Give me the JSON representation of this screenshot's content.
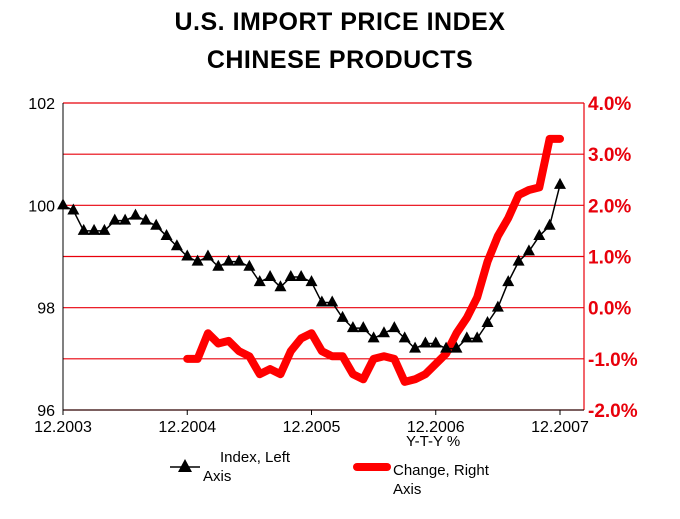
{
  "titles": {
    "line1": "U.S. IMPORT PRICE INDEX",
    "line2": "CHINESE PRODUCTS"
  },
  "colors": {
    "index_series": "#000000",
    "yty_series": "#ff0000",
    "gridline": "#e8000b",
    "right_axis_labels": "#e8000b"
  },
  "chart_data": {
    "type": "line",
    "title": "U.S. IMPORT PRICE INDEX CHINESE PRODUCTS",
    "x_tick_labels": [
      "12.2003",
      "12.2004",
      "12.2005",
      "12.2006",
      "12.2007"
    ],
    "left_axis": {
      "ylim": [
        96,
        102
      ],
      "ticks": [
        "96",
        "98",
        "100",
        "102"
      ]
    },
    "right_axis": {
      "ylim": [
        -2.0,
        4.0
      ],
      "ticks": [
        "-2.0%",
        "-1.0%",
        "0.0%",
        "1.0%",
        "2.0%",
        "3.0%",
        "4.0%"
      ]
    },
    "grid": "horizontal",
    "legend_position": "bottom",
    "series": [
      {
        "name": "Index, Left Axis",
        "axis": "left",
        "marker": "triangle",
        "x": [
          "2003-12",
          "2004-01",
          "2004-02",
          "2004-03",
          "2004-04",
          "2004-05",
          "2004-06",
          "2004-07",
          "2004-08",
          "2004-09",
          "2004-10",
          "2004-11",
          "2004-12",
          "2005-01",
          "2005-02",
          "2005-03",
          "2005-04",
          "2005-05",
          "2005-06",
          "2005-07",
          "2005-08",
          "2005-09",
          "2005-10",
          "2005-11",
          "2005-12",
          "2006-01",
          "2006-02",
          "2006-03",
          "2006-04",
          "2006-05",
          "2006-06",
          "2006-07",
          "2006-08",
          "2006-09",
          "2006-10",
          "2006-11",
          "2006-12",
          "2007-01",
          "2007-02",
          "2007-03",
          "2007-04",
          "2007-05",
          "2007-06",
          "2007-07",
          "2007-08",
          "2007-09",
          "2007-10",
          "2007-11",
          "2007-12"
        ],
        "values": [
          100.0,
          99.9,
          99.5,
          99.5,
          99.5,
          99.7,
          99.7,
          99.8,
          99.7,
          99.6,
          99.4,
          99.2,
          99.0,
          98.9,
          99.0,
          98.8,
          98.9,
          98.9,
          98.8,
          98.5,
          98.6,
          98.4,
          98.6,
          98.6,
          98.5,
          98.1,
          98.1,
          97.8,
          97.6,
          97.6,
          97.4,
          97.5,
          97.6,
          97.4,
          97.2,
          97.3,
          97.3,
          97.2,
          97.2,
          97.4,
          97.4,
          97.7,
          98.0,
          98.5,
          98.9,
          99.1,
          99.4,
          99.6,
          100.4
        ]
      },
      {
        "name": "Y-T-Y % Change, Right Axis",
        "axis": "right",
        "x": [
          "2004-12",
          "2005-01",
          "2005-02",
          "2005-03",
          "2005-04",
          "2005-05",
          "2005-06",
          "2005-07",
          "2005-08",
          "2005-09",
          "2005-10",
          "2005-11",
          "2005-12",
          "2006-01",
          "2006-02",
          "2006-03",
          "2006-04",
          "2006-05",
          "2006-06",
          "2006-07",
          "2006-08",
          "2006-09",
          "2006-10",
          "2006-11",
          "2006-12",
          "2007-01",
          "2007-02",
          "2007-03",
          "2007-04",
          "2007-05",
          "2007-06",
          "2007-07",
          "2007-08",
          "2007-09",
          "2007-10",
          "2007-11",
          "2007-12"
        ],
        "values": [
          -1.0,
          -1.0,
          -0.5,
          -0.7,
          -0.65,
          -0.85,
          -0.95,
          -1.3,
          -1.2,
          -1.3,
          -0.85,
          -0.6,
          -0.5,
          -0.85,
          -0.95,
          -0.95,
          -1.3,
          -1.4,
          -1.0,
          -0.95,
          -1.0,
          -1.45,
          -1.4,
          -1.3,
          -1.1,
          -0.9,
          -0.5,
          -0.2,
          0.2,
          0.9,
          1.4,
          1.75,
          2.2,
          2.3,
          2.35,
          3.3,
          3.3
        ]
      }
    ]
  },
  "legend": {
    "index_label_line1": "Index, Left",
    "index_label_line2": "Axis",
    "yty_label_line1": "Y-T-Y %",
    "yty_label_line2": "Change, Right",
    "yty_label_line3": "Axis"
  }
}
